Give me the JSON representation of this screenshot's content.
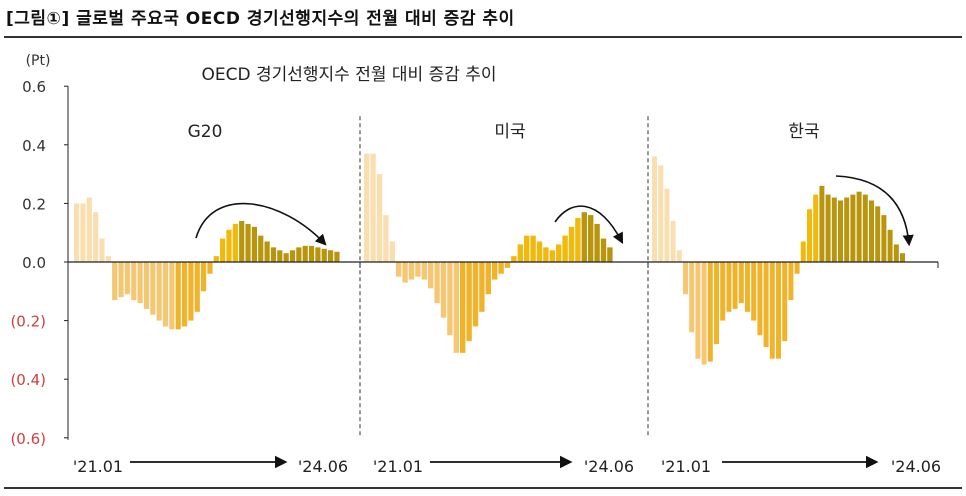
{
  "figure_title": "[그림①] 글로벌 주요국 OECD 경기선행지수의 전월 대비 증감 추이",
  "chart_data": {
    "type": "bar",
    "title": "OECD 경기선행지수 전월 대비 증감 추이",
    "ylabel": "(Pt)",
    "ylim": [
      -0.6,
      0.6
    ],
    "yticks": [
      0.6,
      0.4,
      0.2,
      0.0,
      -0.2,
      -0.4,
      -0.6
    ],
    "ytick_labels": [
      "0.6",
      "0.4",
      "0.2",
      "0.0",
      "(0.2)",
      "(0.4)",
      "(0.6)"
    ],
    "negative_label_color": "#d04040",
    "period": {
      "start": "'21.01",
      "end": "'24.06"
    },
    "colors": {
      "faded_positive": "#f9dfb0",
      "negative": "#f6c773",
      "decline_bottom": "#f0b32a",
      "rising": "#f0b90b",
      "mature": "#b8950c"
    },
    "panels": [
      {
        "name": "G20",
        "values": [
          0.2,
          0.2,
          0.22,
          0.17,
          0.08,
          0.02,
          -0.13,
          -0.12,
          -0.11,
          -0.13,
          -0.14,
          -0.16,
          -0.18,
          -0.2,
          -0.22,
          -0.23,
          -0.23,
          -0.22,
          -0.2,
          -0.17,
          -0.1,
          -0.04,
          0.02,
          0.08,
          0.11,
          0.13,
          0.14,
          0.13,
          0.12,
          0.09,
          0.07,
          0.05,
          0.04,
          0.03,
          0.04,
          0.05,
          0.055,
          0.055,
          0.05,
          0.045,
          0.04,
          0.035
        ]
      },
      {
        "name": "미국",
        "values": [
          0.37,
          0.37,
          0.3,
          0.16,
          0.07,
          -0.05,
          -0.07,
          -0.06,
          -0.05,
          -0.06,
          -0.09,
          -0.14,
          -0.19,
          -0.25,
          -0.31,
          -0.31,
          -0.27,
          -0.22,
          -0.17,
          -0.11,
          -0.06,
          -0.04,
          -0.02,
          0.02,
          0.06,
          0.09,
          0.09,
          0.07,
          0.05,
          0.04,
          0.06,
          0.09,
          0.12,
          0.15,
          0.17,
          0.16,
          0.13,
          0.08,
          0.05
        ]
      },
      {
        "name": "한국",
        "values": [
          0.36,
          0.33,
          0.25,
          0.14,
          0.04,
          -0.11,
          -0.24,
          -0.33,
          -0.35,
          -0.34,
          -0.28,
          -0.2,
          -0.17,
          -0.16,
          -0.14,
          -0.17,
          -0.2,
          -0.25,
          -0.29,
          -0.33,
          -0.33,
          -0.27,
          -0.13,
          -0.04,
          0.07,
          0.18,
          0.23,
          0.26,
          0.23,
          0.22,
          0.21,
          0.22,
          0.23,
          0.24,
          0.23,
          0.21,
          0.19,
          0.16,
          0.11,
          0.06,
          0.03
        ]
      }
    ]
  }
}
